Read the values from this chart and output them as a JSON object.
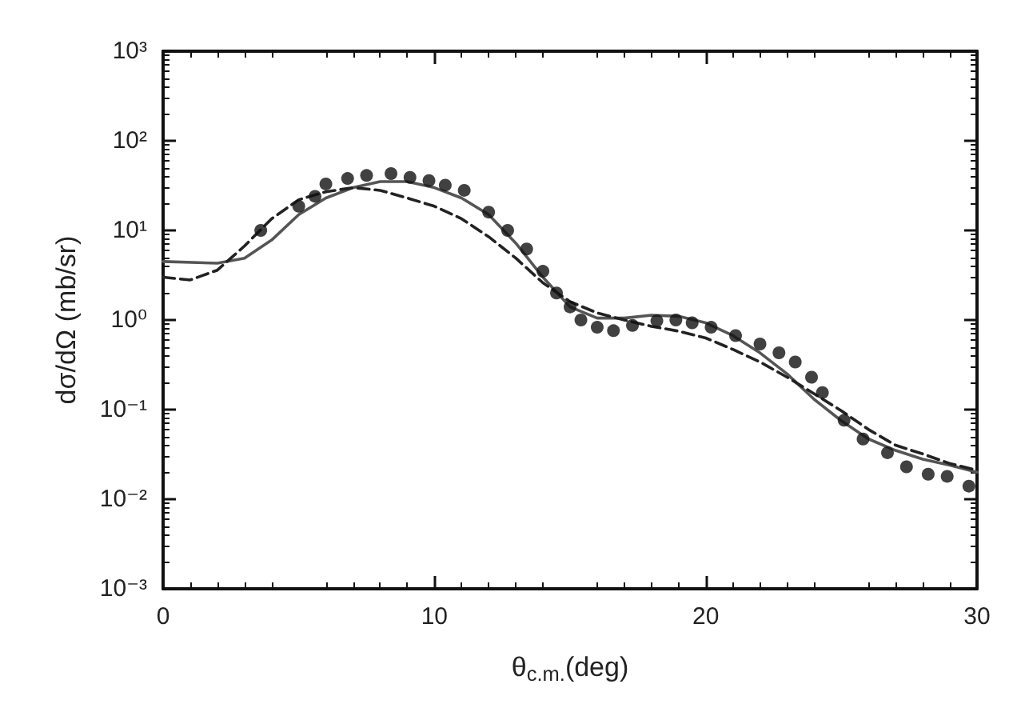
{
  "chart_data": {
    "type": "line",
    "xlabel": "θ$_{c.m.}$(deg)",
    "ylabel": "dσ/dΩ (mb/sr)",
    "xlim": [
      0,
      30
    ],
    "xticks": [
      0,
      10,
      20,
      30
    ],
    "ylim": [
      0.001,
      1000
    ],
    "yticks": [
      {
        "value": 0.001,
        "label": "10⁻³"
      },
      {
        "value": 0.01,
        "label": "10⁻²"
      },
      {
        "value": 0.1,
        "label": "10⁻¹"
      },
      {
        "value": 1,
        "label": "10⁰"
      },
      {
        "value": 10,
        "label": "10¹"
      },
      {
        "value": 100,
        "label": "10²"
      },
      {
        "value": 1000,
        "label": "10³"
      }
    ],
    "log": "y",
    "grid": false,
    "series": [
      {
        "type": "scatter",
        "marker": "circle",
        "color": "#111111",
        "x": [
          3.6,
          5.0,
          5.6,
          6.0,
          6.8,
          7.5,
          8.4,
          9.1,
          9.8,
          10.4,
          11.1,
          12.0,
          12.7,
          13.4,
          14.0,
          14.5,
          15.0,
          15.4,
          16.0,
          16.6,
          17.3,
          18.2,
          18.9,
          19.5,
          20.2,
          21.1,
          22.0,
          22.7,
          23.3,
          23.9,
          24.3,
          25.1,
          25.8,
          26.7,
          27.4,
          28.2,
          28.9,
          29.7
        ],
        "values": [
          10,
          18.6,
          24,
          33,
          38,
          41,
          43,
          39,
          36,
          32,
          28,
          16,
          10,
          6.2,
          3.5,
          2.0,
          1.4,
          1.0,
          0.83,
          0.76,
          0.87,
          0.98,
          1.0,
          0.93,
          0.83,
          0.67,
          0.54,
          0.43,
          0.34,
          0.23,
          0.155,
          0.076,
          0.047,
          0.033,
          0.023,
          0.019,
          0.018,
          0.014
        ]
      },
      {
        "marker": "none",
        "line_style": "solid",
        "color": "#555555",
        "x": [
          0,
          2,
          3,
          4,
          5,
          6,
          7,
          8,
          9,
          10,
          11,
          12,
          13,
          14,
          15,
          16,
          17,
          18,
          19,
          20,
          21,
          22,
          23,
          24,
          25,
          26,
          27,
          28,
          29,
          30
        ],
        "values": [
          4.5,
          4.3,
          4.9,
          7.8,
          15,
          23,
          30,
          35,
          35,
          30,
          23,
          15,
          7.2,
          3.0,
          1.4,
          1.05,
          1.05,
          1.13,
          1.1,
          0.93,
          0.67,
          0.43,
          0.25,
          0.13,
          0.075,
          0.047,
          0.035,
          0.028,
          0.024,
          0.02
        ]
      },
      {
        "marker": "none",
        "line_style": "dashed",
        "color": "#222222",
        "x": [
          0,
          1,
          2,
          3,
          4,
          5,
          6,
          7,
          8,
          9,
          10,
          11,
          12,
          13,
          14,
          15,
          16,
          17,
          18,
          19,
          20,
          21,
          22,
          23,
          24,
          25,
          26,
          27,
          28,
          29,
          30
        ],
        "values": [
          3.0,
          2.8,
          3.6,
          6.7,
          13.5,
          22,
          27,
          30,
          28,
          23,
          18.6,
          13.5,
          8.5,
          4.9,
          2.6,
          1.6,
          1.2,
          1.0,
          0.85,
          0.75,
          0.63,
          0.47,
          0.34,
          0.23,
          0.15,
          0.097,
          0.06,
          0.04,
          0.032,
          0.025,
          0.021
        ]
      }
    ]
  }
}
